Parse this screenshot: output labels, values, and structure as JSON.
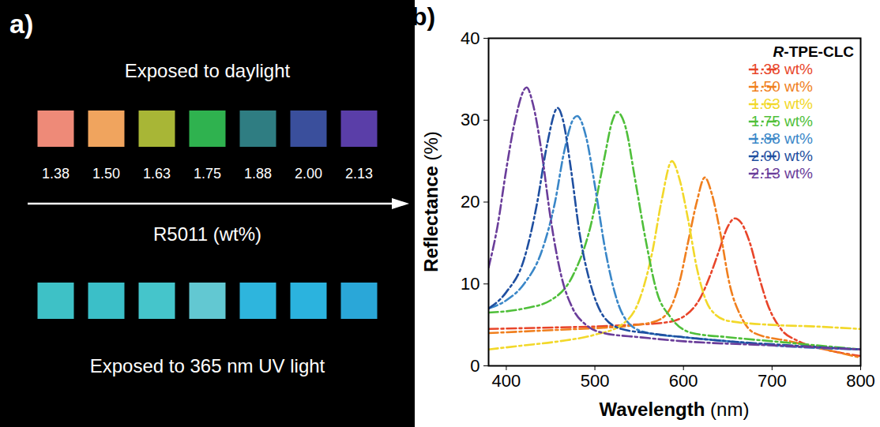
{
  "panel_a": {
    "letter": "a)",
    "top_caption": "Exposed to daylight",
    "scale_title": "R5011 (wt%)",
    "bottom_caption": "Exposed to 365 nm UV light",
    "concentrations": [
      "1.38",
      "1.50",
      "1.63",
      "1.75",
      "1.88",
      "2.00",
      "2.13"
    ],
    "daylight_colors": [
      "#ee8a78",
      "#f0a45e",
      "#a8b636",
      "#2fb24f",
      "#2f7d82",
      "#3a4f9c",
      "#5a3ea8"
    ],
    "uv_colors": [
      "#3ec1c6",
      "#3bbfc8",
      "#45c5cb",
      "#62c8d2",
      "#2eb5dd",
      "#2bb3de",
      "#2aa7d8"
    ]
  },
  "chart_data": {
    "letter": "b)",
    "type": "line",
    "x_label": "Wavelength (nm)",
    "y_label": "Reflectance (%)",
    "legend_title": "R-TPE-CLC",
    "legend": "top-right",
    "line_style": "dashdot",
    "xlim": [
      380,
      800
    ],
    "xticks": [
      400,
      500,
      600,
      700,
      800
    ],
    "ylim": [
      0,
      40
    ],
    "yticks": [
      0,
      10,
      20,
      30,
      40
    ],
    "series": [
      {
        "name": "1.38 wt%",
        "color": "#e8452a",
        "x": [
          380,
          420,
          460,
          500,
          540,
          580,
          600,
          620,
          630,
          640,
          650,
          658,
          665,
          675,
          685,
          695,
          710,
          730,
          760,
          800
        ],
        "values": [
          4.5,
          4.6,
          4.7,
          4.8,
          5.0,
          5.3,
          6.0,
          8.5,
          11,
          14,
          17,
          18,
          17.5,
          15,
          11,
          7.5,
          4.5,
          3.0,
          2.0,
          1.2
        ]
      },
      {
        "name": "1.50 wt%",
        "color": "#f07f1e",
        "x": [
          380,
          420,
          460,
          500,
          540,
          570,
          585,
          595,
          605,
          615,
          624,
          632,
          642,
          652,
          665,
          680,
          720,
          760,
          800
        ],
        "values": [
          4.0,
          4.2,
          4.4,
          4.6,
          4.9,
          5.5,
          7,
          10,
          15,
          20,
          23,
          21,
          16,
          10,
          6,
          4,
          3,
          2,
          1
        ]
      },
      {
        "name": "1.63 wt%",
        "color": "#f2d82a",
        "x": [
          380,
          420,
          460,
          500,
          530,
          550,
          565,
          575,
          587,
          595,
          605,
          615,
          630,
          650,
          700,
          750,
          800
        ],
        "values": [
          2,
          2.5,
          3,
          3.8,
          5,
          8,
          14,
          20,
          25,
          23,
          18,
          12,
          7,
          5.5,
          5,
          4.8,
          4.5
        ]
      },
      {
        "name": "1.75 wt%",
        "color": "#4fbf3a",
        "x": [
          380,
          420,
          450,
          475,
          495,
          510,
          520,
          525,
          535,
          545,
          558,
          570,
          585,
          610,
          650,
          700,
          750,
          800
        ],
        "values": [
          6.5,
          7,
          8,
          11,
          17,
          25,
          30,
          31,
          29,
          23,
          15,
          9,
          6,
          4,
          3.5,
          3,
          2.5,
          2
        ]
      },
      {
        "name": "1.88 wt%",
        "color": "#3a87c8",
        "x": [
          380,
          400,
          420,
          440,
          455,
          465,
          475,
          480,
          490,
          500,
          512,
          525,
          540,
          560,
          600,
          650,
          700,
          800
        ],
        "values": [
          7,
          8,
          10,
          14,
          20,
          26,
          30,
          30.5,
          28,
          22,
          14,
          8,
          5,
          4,
          3.5,
          3,
          2.5,
          2
        ]
      },
      {
        "name": "2.00 wt%",
        "color": "#1f4fa0",
        "x": [
          380,
          400,
          420,
          435,
          446,
          458,
          464,
          473,
          483,
          495,
          510,
          530,
          560,
          600,
          650,
          720,
          800
        ],
        "values": [
          7,
          9,
          13,
          20,
          27,
          31.5,
          30,
          24,
          16,
          10,
          6,
          4.5,
          4,
          3.5,
          3,
          2.5,
          2
        ]
      },
      {
        "name": "2.13 wt%",
        "color": "#6a3d9a",
        "x": [
          380,
          390,
          400,
          410,
          423,
          430,
          440,
          450,
          462,
          475,
          490,
          510,
          550,
          600,
          700,
          800
        ],
        "values": [
          12,
          17,
          24,
          30,
          34,
          32,
          26,
          18,
          11,
          7,
          5,
          4,
          3.5,
          3,
          2.5,
          2
        ]
      }
    ]
  }
}
